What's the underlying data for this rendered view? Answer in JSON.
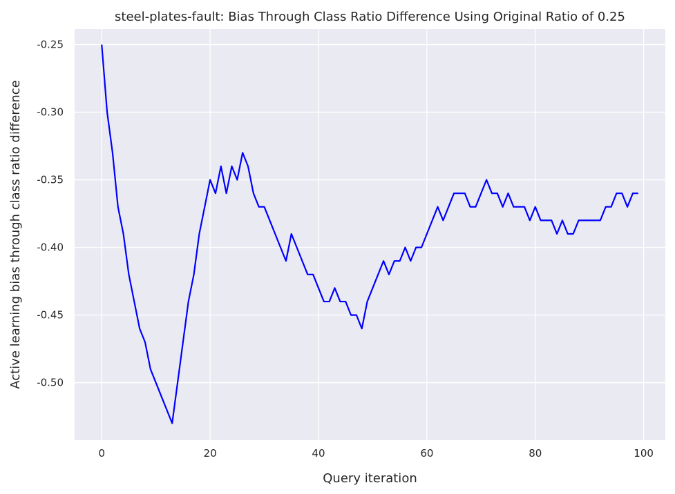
{
  "chart_data": {
    "type": "line",
    "title": "steel-plates-fault: Bias Through Class Ratio Difference Using Original Ratio of 0.25",
    "xlabel": "Query iteration",
    "ylabel": "Active learning bias through class ratio difference",
    "xlim": [
      -5,
      104
    ],
    "ylim": [
      -0.5425,
      -0.2385
    ],
    "x_ticks": [
      0,
      20,
      40,
      60,
      80,
      100
    ],
    "x_tick_labels": [
      "0",
      "20",
      "40",
      "60",
      "80",
      "100"
    ],
    "y_ticks": [
      -0.25,
      -0.3,
      -0.35,
      -0.4,
      -0.45,
      -0.5
    ],
    "y_tick_labels": [
      "-0.25",
      "-0.30",
      "-0.35",
      "-0.40",
      "-0.45",
      "-0.50"
    ],
    "grid": true,
    "background": "#eaeaf2",
    "grid_color": "#ffffff",
    "series": [
      {
        "color": "#0000ff",
        "x": [
          0,
          1,
          2,
          3,
          4,
          5,
          6,
          7,
          8,
          9,
          10,
          11,
          12,
          13,
          14,
          15,
          16,
          17,
          18,
          19,
          20,
          21,
          22,
          23,
          24,
          25,
          26,
          27,
          28,
          29,
          30,
          31,
          32,
          33,
          34,
          35,
          36,
          37,
          38,
          39,
          40,
          41,
          42,
          43,
          44,
          45,
          46,
          47,
          48,
          49,
          50,
          51,
          52,
          53,
          54,
          55,
          56,
          57,
          58,
          59,
          60,
          61,
          62,
          63,
          64,
          65,
          66,
          67,
          68,
          69,
          70,
          71,
          72,
          73,
          74,
          75,
          76,
          77,
          78,
          79,
          80,
          81,
          82,
          83,
          84,
          85,
          86,
          87,
          88,
          89,
          90,
          91,
          92,
          93,
          94,
          95,
          96,
          97,
          98,
          99
        ],
        "values": [
          -0.25,
          -0.3,
          -0.33,
          -0.37,
          -0.39,
          -0.42,
          -0.44,
          -0.46,
          -0.47,
          -0.49,
          -0.5,
          -0.51,
          -0.52,
          -0.53,
          -0.5,
          -0.47,
          -0.44,
          -0.42,
          -0.39,
          -0.37,
          -0.35,
          -0.36,
          -0.34,
          -0.36,
          -0.34,
          -0.35,
          -0.33,
          -0.34,
          -0.36,
          -0.37,
          -0.37,
          -0.38,
          -0.39,
          -0.4,
          -0.41,
          -0.39,
          -0.4,
          -0.41,
          -0.42,
          -0.42,
          -0.43,
          -0.44,
          -0.44,
          -0.43,
          -0.44,
          -0.44,
          -0.45,
          -0.45,
          -0.46,
          -0.44,
          -0.43,
          -0.42,
          -0.41,
          -0.42,
          -0.41,
          -0.41,
          -0.4,
          -0.41,
          -0.4,
          -0.4,
          -0.39,
          -0.38,
          -0.37,
          -0.38,
          -0.37,
          -0.36,
          -0.36,
          -0.36,
          -0.37,
          -0.37,
          -0.36,
          -0.35,
          -0.36,
          -0.36,
          -0.37,
          -0.36,
          -0.37,
          -0.37,
          -0.37,
          -0.38,
          -0.37,
          -0.38,
          -0.38,
          -0.38,
          -0.39,
          -0.38,
          -0.39,
          -0.39,
          -0.38,
          -0.38,
          -0.38,
          -0.38,
          -0.38,
          -0.37,
          -0.37,
          -0.36,
          -0.36,
          -0.37,
          -0.36,
          -0.36
        ]
      }
    ]
  }
}
